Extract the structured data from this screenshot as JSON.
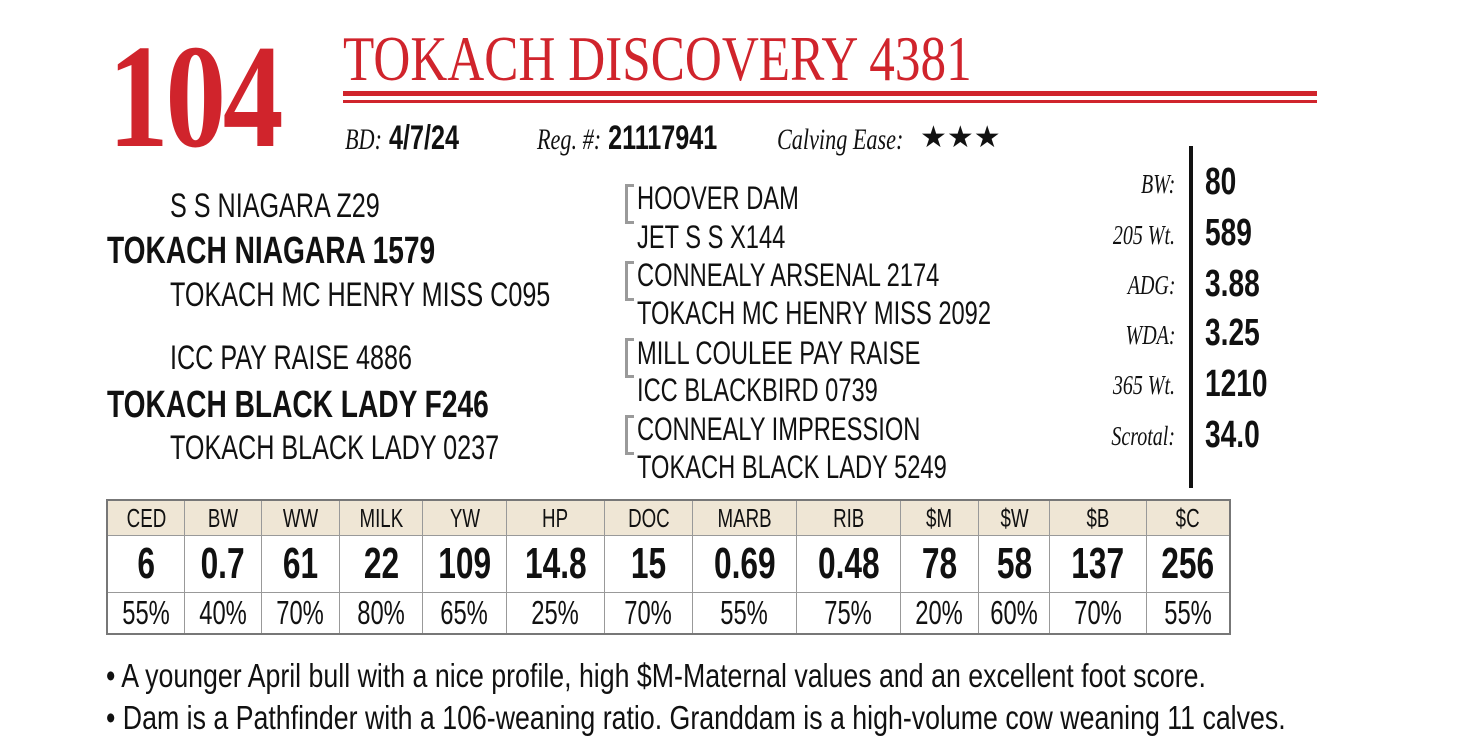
{
  "lot_number": "104",
  "title": "TOKACH DISCOVERY 4381",
  "info": {
    "bd_label": "BD:",
    "bd": "4/7/24",
    "reg_label": "Reg. #:",
    "reg": "21117941",
    "ce_label": "Calving Ease:",
    "ce_stars": "★★★"
  },
  "pedigree": {
    "sire": "TOKACH NIAGARA 1579",
    "sire_sire": "S S NIAGARA Z29",
    "sire_dam": "TOKACH MC HENRY MISS C095",
    "dam": "TOKACH BLACK LADY F246",
    "dam_sire": "ICC PAY RAISE 4886",
    "dam_dam": "TOKACH BLACK LADY 0237",
    "great_grandparents": [
      "HOOVER DAM",
      "JET S S X144",
      "CONNEALY ARSENAL 2174",
      "TOKACH MC HENRY MISS 2092",
      "MILL COULEE PAY RAISE",
      "ICC BLACKBIRD 0739",
      "CONNEALY IMPRESSION",
      "TOKACH BLACK LADY 5249"
    ]
  },
  "stats": [
    {
      "label": "BW:",
      "value": "80"
    },
    {
      "label": "205 Wt.",
      "value": "589"
    },
    {
      "label": "ADG:",
      "value": "3.88"
    },
    {
      "label": "WDA:",
      "value": "3.25"
    },
    {
      "label": "365 Wt.",
      "value": "1210"
    },
    {
      "label": "Scrotal:",
      "value": "34.0"
    }
  ],
  "epd_table": {
    "headers": [
      "CED",
      "BW",
      "WW",
      "MILK",
      "YW",
      "HP",
      "DOC",
      "MARB",
      "RIB",
      "$M",
      "$W",
      "$B",
      "$C"
    ],
    "values": [
      "6",
      "0.7",
      "61",
      "22",
      "109",
      "14.8",
      "15",
      "0.69",
      "0.48",
      "78",
      "58",
      "137",
      "256"
    ],
    "percentiles": [
      "55%",
      "40%",
      "70%",
      "80%",
      "65%",
      "25%",
      "70%",
      "55%",
      "75%",
      "20%",
      "60%",
      "70%",
      "55%"
    ]
  },
  "notes": [
    "• A younger April bull with a nice profile, high $M-Maternal values and an excellent foot score.",
    "• Dam is a Pathfinder with a 106-weaning ratio. Granddam is a high-volume cow weaning 11 calves."
  ],
  "colors": {
    "accent": "#d0242c",
    "table_header_bg": "#efe6d5"
  }
}
